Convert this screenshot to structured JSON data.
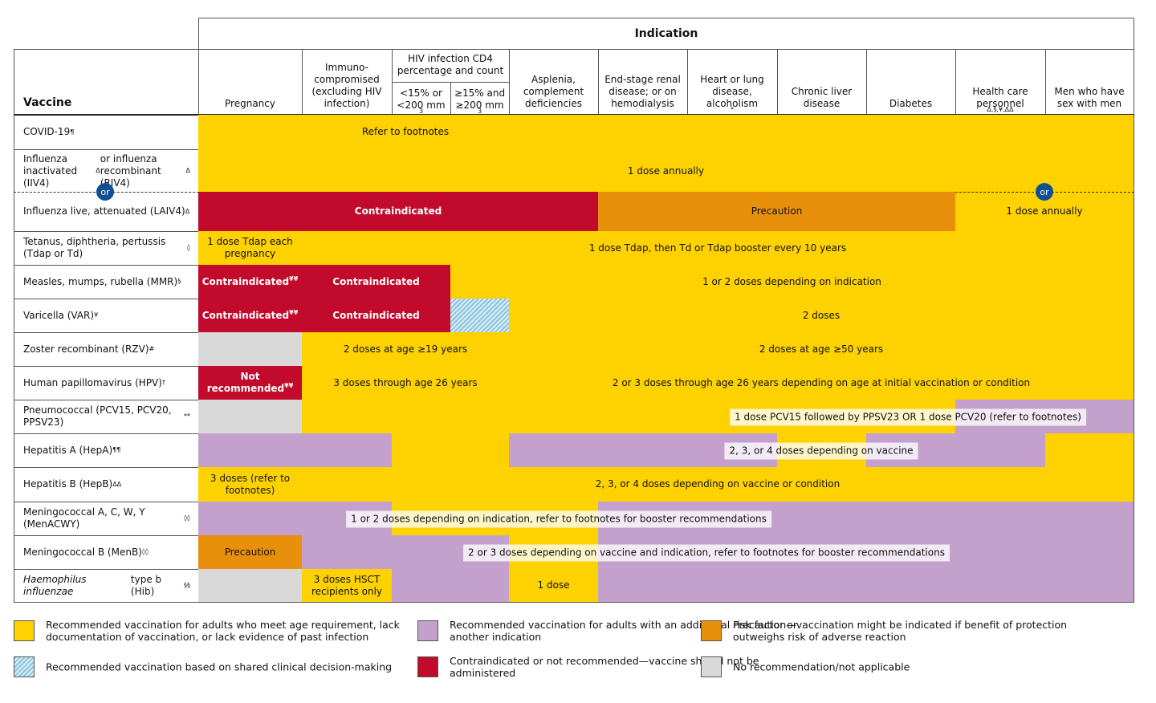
{
  "header": {
    "indication": "Indication",
    "vaccine": "Vaccine"
  },
  "colors": {
    "yellow": "#fed100",
    "purple": "#c3a1cc",
    "orange": "#e8900c",
    "red": "#c10a2c",
    "gray": "#d9d9d9",
    "hatch": "#8cc4de"
  },
  "or_label": "or",
  "columns": [
    {
      "label": [
        "Pregnancy"
      ]
    },
    {
      "label": [
        "Immuno-compromised (excluding HIV infection)"
      ]
    },
    {
      "label": [
        "HIV infection CD4 percentage and count"
      ],
      "sub": [
        [
          "<15% or <200 mm",
          {
            "sup": "3"
          }
        ],
        [
          "≥15% and ≥200 mm",
          {
            "sup": "3"
          }
        ]
      ]
    },
    {
      "label": [
        "Asplenia, complement deficiencies"
      ]
    },
    {
      "label": [
        "End-stage renal disease; or on hemodialysis"
      ]
    },
    {
      "label": [
        "Heart or lung disease, alcoholism",
        {
          "sup": "*"
        }
      ]
    },
    {
      "label": [
        "Chronic liver disease"
      ]
    },
    {
      "label": [
        "Diabetes"
      ]
    },
    {
      "label": [
        "Health care personnel ",
        {
          "sup": "Δ,§,¥,ΔΔ"
        }
      ]
    },
    {
      "label": [
        "Men who have sex with men"
      ]
    }
  ],
  "rows": [
    {
      "name": [
        "COVID-19",
        {
          "sup": "¶"
        }
      ],
      "cells": [
        {
          "span": 1,
          "fill": "yellow"
        },
        {
          "span": 3,
          "fill": "yellow",
          "label": "Refer to footnotes"
        },
        {
          "span": 7,
          "fill": "yellow"
        }
      ]
    },
    {
      "name": [
        "Influenza inactivated (IIV4)",
        {
          "sup": "Δ"
        },
        " or influenza recombinant (RIV4)",
        {
          "sup": "Δ"
        }
      ],
      "cells": [
        {
          "span": 11,
          "fill": "yellow",
          "label": "1 dose annually"
        }
      ]
    },
    {
      "name": [
        "Influenza live, attenuated (LAIV4)",
        {
          "sup": "Δ"
        }
      ],
      "cells": [
        {
          "span": 5,
          "fill": "red",
          "label": "Contraindicated"
        },
        {
          "span": 4,
          "fill": "orange",
          "label": "Precaution"
        },
        {
          "span": 2,
          "fill": "yellow",
          "label": "1 dose annually"
        }
      ]
    },
    {
      "name": [
        "Tetanus, diphtheria, pertussis (Tdap or Td)",
        {
          "sup": "◊"
        }
      ],
      "cells": [
        {
          "span": 1,
          "fill": "yellow",
          "label": "1 dose Tdap each pregnancy"
        },
        {
          "span": 10,
          "fill": "yellow",
          "label": "1 dose Tdap, then Td or Tdap booster every 10 years"
        }
      ]
    },
    {
      "name": [
        "Measles, mumps, rubella (MMR)",
        {
          "sup": "§"
        }
      ],
      "cells": [
        {
          "span": 1,
          "fill": "red",
          "label": "Contraindicated",
          "sup": "¥¥"
        },
        {
          "span": 2,
          "fill": "red",
          "label": "Contraindicated"
        },
        {
          "span": 8,
          "fill": "yellow",
          "label": "1 or 2 doses depending on indication"
        }
      ]
    },
    {
      "name": [
        "Varicella (VAR)",
        {
          "sup": "¥"
        }
      ],
      "cells": [
        {
          "span": 1,
          "fill": "red",
          "label": "Contraindicated",
          "sup": "¥¥"
        },
        {
          "span": 2,
          "fill": "red",
          "label": "Contraindicated"
        },
        {
          "span": 1,
          "fill": "hatch"
        },
        {
          "span": 7,
          "fill": "yellow",
          "label": "2 doses"
        }
      ]
    },
    {
      "name": [
        "Zoster recombinant (RZV)",
        {
          "sup": "#"
        }
      ],
      "cells": [
        {
          "span": 1,
          "fill": "gray"
        },
        {
          "span": 3,
          "fill": "yellow",
          "label": "2 doses at age ≥19 years"
        },
        {
          "span": 7,
          "fill": "yellow",
          "label": "2 doses at age ≥50 years"
        }
      ]
    },
    {
      "name": [
        "Human papillomavirus (HPV)",
        {
          "sup": "†"
        }
      ],
      "cells": [
        {
          "span": 1,
          "fill": "red",
          "label": "Not recommended",
          "sup": "¥¥"
        },
        {
          "span": 3,
          "fill": "yellow",
          "label": "3 doses through age 26 years"
        },
        {
          "span": 7,
          "fill": "yellow",
          "label": "2 or 3 doses through age 26 years depending on age at initial vaccination or condition"
        }
      ]
    },
    {
      "name": [
        "Pneumococcal (PCV15, PCV20, PPSV23)",
        {
          "sup": "**"
        }
      ],
      "label": "1 dose PCV15 followed by PPSV23 OR 1 dose PCV20 (refer to footnotes)",
      "cells": [
        {
          "span": 1,
          "fill": "gray"
        },
        {
          "span": 8,
          "fill": "yellow"
        },
        {
          "span": 2,
          "fill": "purple"
        }
      ]
    },
    {
      "name": [
        "Hepatitis A (HepA)",
        {
          "sup": "¶¶"
        }
      ],
      "label": "2, 3, or 4 doses depending on vaccine",
      "cells": [
        {
          "span": 2,
          "fill": "purple"
        },
        {
          "span": 2,
          "fill": "yellow"
        },
        {
          "span": 3,
          "fill": "purple"
        },
        {
          "span": 1,
          "fill": "yellow"
        },
        {
          "span": 2,
          "fill": "purple"
        },
        {
          "span": 1,
          "fill": "yellow"
        }
      ]
    },
    {
      "name": [
        "Hepatitis B (HepB)",
        {
          "sup": "ΔΔ"
        }
      ],
      "cells": [
        {
          "span": 1,
          "fill": "yellow",
          "label": "3 doses (refer to footnotes)"
        },
        {
          "span": 10,
          "fill": "yellow",
          "label": "2, 3, or 4 doses depending on vaccine or condition"
        }
      ]
    },
    {
      "name": [
        "Meningococcal A, C, W, Y (MenACWY)",
        {
          "sup": "◊◊"
        }
      ],
      "label": "1 or 2 doses depending on indication, refer to footnotes for booster recommendations",
      "cells": [
        {
          "span": 2,
          "fill": "purple"
        },
        {
          "span": 3,
          "fill": "yellow"
        },
        {
          "span": 6,
          "fill": "purple"
        }
      ]
    },
    {
      "name": [
        "Meningococcal B (MenB)",
        {
          "sup": "◊◊"
        }
      ],
      "label": "2 or 3 doses depending on vaccine and indication, refer to footnotes for booster recommendations",
      "cells": [
        {
          "span": 1,
          "fill": "orange",
          "label": "Precaution"
        },
        {
          "span": 3,
          "fill": "purple"
        },
        {
          "span": 1,
          "fill": "yellow"
        },
        {
          "span": 6,
          "fill": "purple"
        }
      ]
    },
    {
      "name": [
        {
          "i": "Haemophilus influenzae"
        },
        " type b (Hib)",
        {
          "sup": "§§"
        }
      ],
      "cells": [
        {
          "span": 1,
          "fill": "gray"
        },
        {
          "span": 1,
          "fill": "yellow",
          "label": "3 doses HSCT recipients only"
        },
        {
          "span": 2,
          "fill": "purple"
        },
        {
          "span": 1,
          "fill": "yellow",
          "label": "1 dose"
        },
        {
          "span": 6,
          "fill": "purple"
        }
      ]
    }
  ],
  "legend": [
    {
      "fill": "yellow",
      "text": "Recommended vaccination for adults who meet age requirement, lack documentation of vaccination, or lack evidence of past infection"
    },
    {
      "fill": "purple",
      "text": "Recommended vaccination for adults with an additional risk factor or another indication"
    },
    {
      "fill": "orange",
      "text": "Precaution—vaccination might be indicated if benefit of protection outweighs risk of adverse reaction"
    },
    {
      "fill": "hatch",
      "text": "Recommended vaccination based on shared clinical decision-making"
    },
    {
      "fill": "red",
      "text": "Contraindicated or not recommended—vaccine should not be administered"
    },
    {
      "fill": "gray",
      "text": "No recommendation/not applicable"
    }
  ]
}
